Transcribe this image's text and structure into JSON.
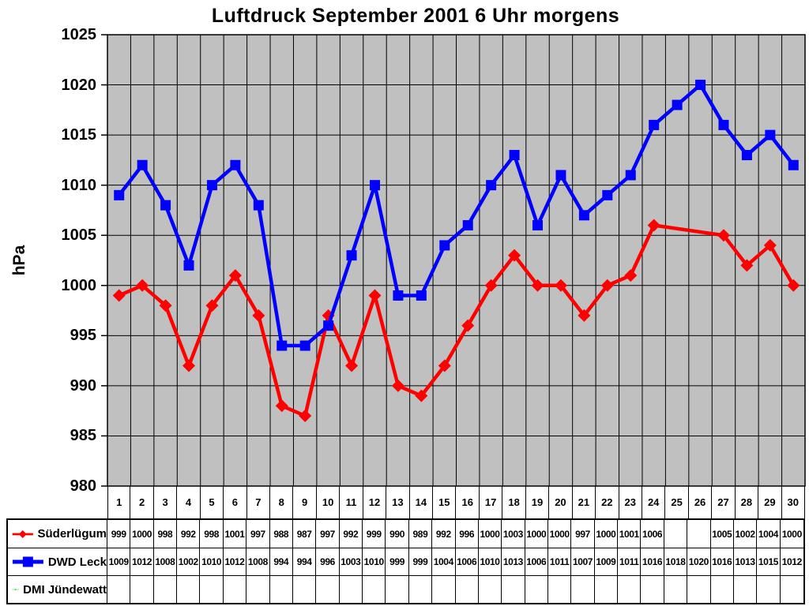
{
  "title": "Luftdruck September 2001 6 Uhr morgens",
  "y_axis": {
    "label": "hPa",
    "ticks": [
      1025,
      1020,
      1015,
      1010,
      1005,
      1000,
      995,
      990,
      985,
      980
    ]
  },
  "chart_data": {
    "type": "line",
    "title": "Luftdruck September 2001 6 Uhr morgens",
    "xlabel": "",
    "ylabel": "hPa",
    "ylim": [
      980,
      1025
    ],
    "grid": true,
    "plot_bg": "#c0c0c0",
    "grid_color": "#000000",
    "legend_position": "bottom-table",
    "x": [
      1,
      2,
      3,
      4,
      5,
      6,
      7,
      8,
      9,
      10,
      11,
      12,
      13,
      14,
      15,
      16,
      17,
      18,
      19,
      20,
      21,
      22,
      23,
      24,
      25,
      26,
      27,
      28,
      29,
      30
    ],
    "series": [
      {
        "name": "Süderlügum",
        "color": "#ff0000",
        "marker": "diamond",
        "values": [
          999,
          1000,
          998,
          992,
          998,
          1001,
          997,
          988,
          987,
          997,
          992,
          999,
          990,
          989,
          992,
          996,
          1000,
          1003,
          1000,
          1000,
          997,
          1000,
          1001,
          1006,
          null,
          null,
          1005,
          1002,
          1004,
          1000
        ]
      },
      {
        "name": "DWD Leck",
        "color": "#0000ff",
        "marker": "square",
        "values": [
          1009,
          1012,
          1008,
          1002,
          1010,
          1012,
          1008,
          994,
          994,
          996,
          1003,
          1010,
          999,
          999,
          1004,
          1006,
          1010,
          1013,
          1006,
          1011,
          1007,
          1009,
          1011,
          1016,
          1018,
          1020,
          1016,
          1013,
          1015,
          1012
        ]
      },
      {
        "name": "DMI Jündewatt",
        "color": "#00cc00",
        "marker": "triangle",
        "values": [
          null,
          null,
          null,
          null,
          null,
          null,
          null,
          null,
          null,
          null,
          null,
          null,
          null,
          null,
          null,
          null,
          null,
          null,
          null,
          null,
          null,
          null,
          null,
          null,
          null,
          null,
          null,
          null,
          null,
          null
        ]
      }
    ]
  }
}
